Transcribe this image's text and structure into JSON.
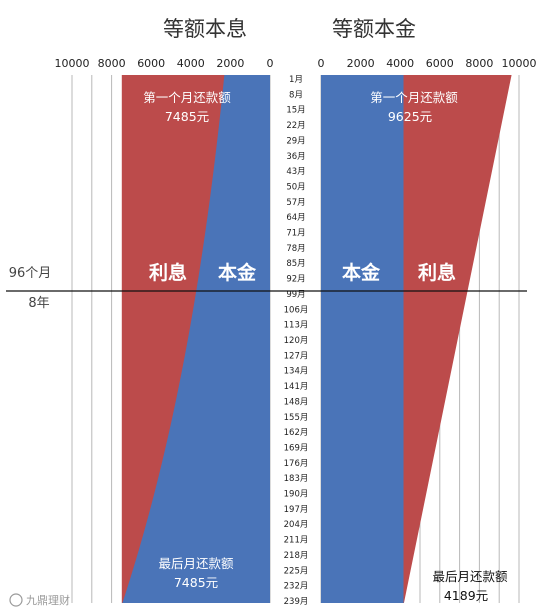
{
  "chart_data": [
    {
      "type": "area",
      "title": "等额本息",
      "x_axis_direction": "reversed",
      "xlim": [
        0,
        10000
      ],
      "x_ticks": [
        "10000",
        "8000",
        "6000",
        "4000",
        "2000",
        "0"
      ],
      "months": [
        1,
        240
      ],
      "monthly_payment": 7485,
      "principal_series": {
        "name": "本金",
        "color": "#4A74B8",
        "start": 2305,
        "end": 7455
      },
      "interest_series": {
        "name": "利息",
        "color": "#BC4B4B",
        "start": 5180,
        "end": 30
      },
      "first_label": "第一个月还款额",
      "first_value": "7485元",
      "last_label": "最后月还款额",
      "last_value": "7485元"
    },
    {
      "type": "area",
      "title": "等额本金",
      "x_axis_direction": "normal",
      "xlim": [
        0,
        10000
      ],
      "x_ticks": [
        "0",
        "2000",
        "4000",
        "6000",
        "8000",
        "10000"
      ],
      "months": [
        1,
        240
      ],
      "principal_per_month": 4167,
      "principal_series": {
        "name": "本金",
        "color": "#4A74B8",
        "start": 4167,
        "end": 4167
      },
      "interest_series": {
        "name": "利息",
        "color": "#BC4B4B",
        "start": 5458,
        "end": 22
      },
      "first_label": "第一个月还款额",
      "first_value": "9625元",
      "last_label": "最后月还款额",
      "last_value": "4189元"
    }
  ],
  "month_labels": [
    "1月",
    "8月",
    "15月",
    "22月",
    "29月",
    "36月",
    "43月",
    "50月",
    "57月",
    "64月",
    "71月",
    "78月",
    "85月",
    "92月",
    "99月",
    "106月",
    "113月",
    "120月",
    "127月",
    "134月",
    "141月",
    "148月",
    "155月",
    "162月",
    "169月",
    "176月",
    "183月",
    "190月",
    "197月",
    "204月",
    "211月",
    "218月",
    "225月",
    "232月",
    "239月"
  ],
  "divider": {
    "label_top": "96个月",
    "label_bottom": "8年"
  },
  "watermark": "九鼎理财"
}
